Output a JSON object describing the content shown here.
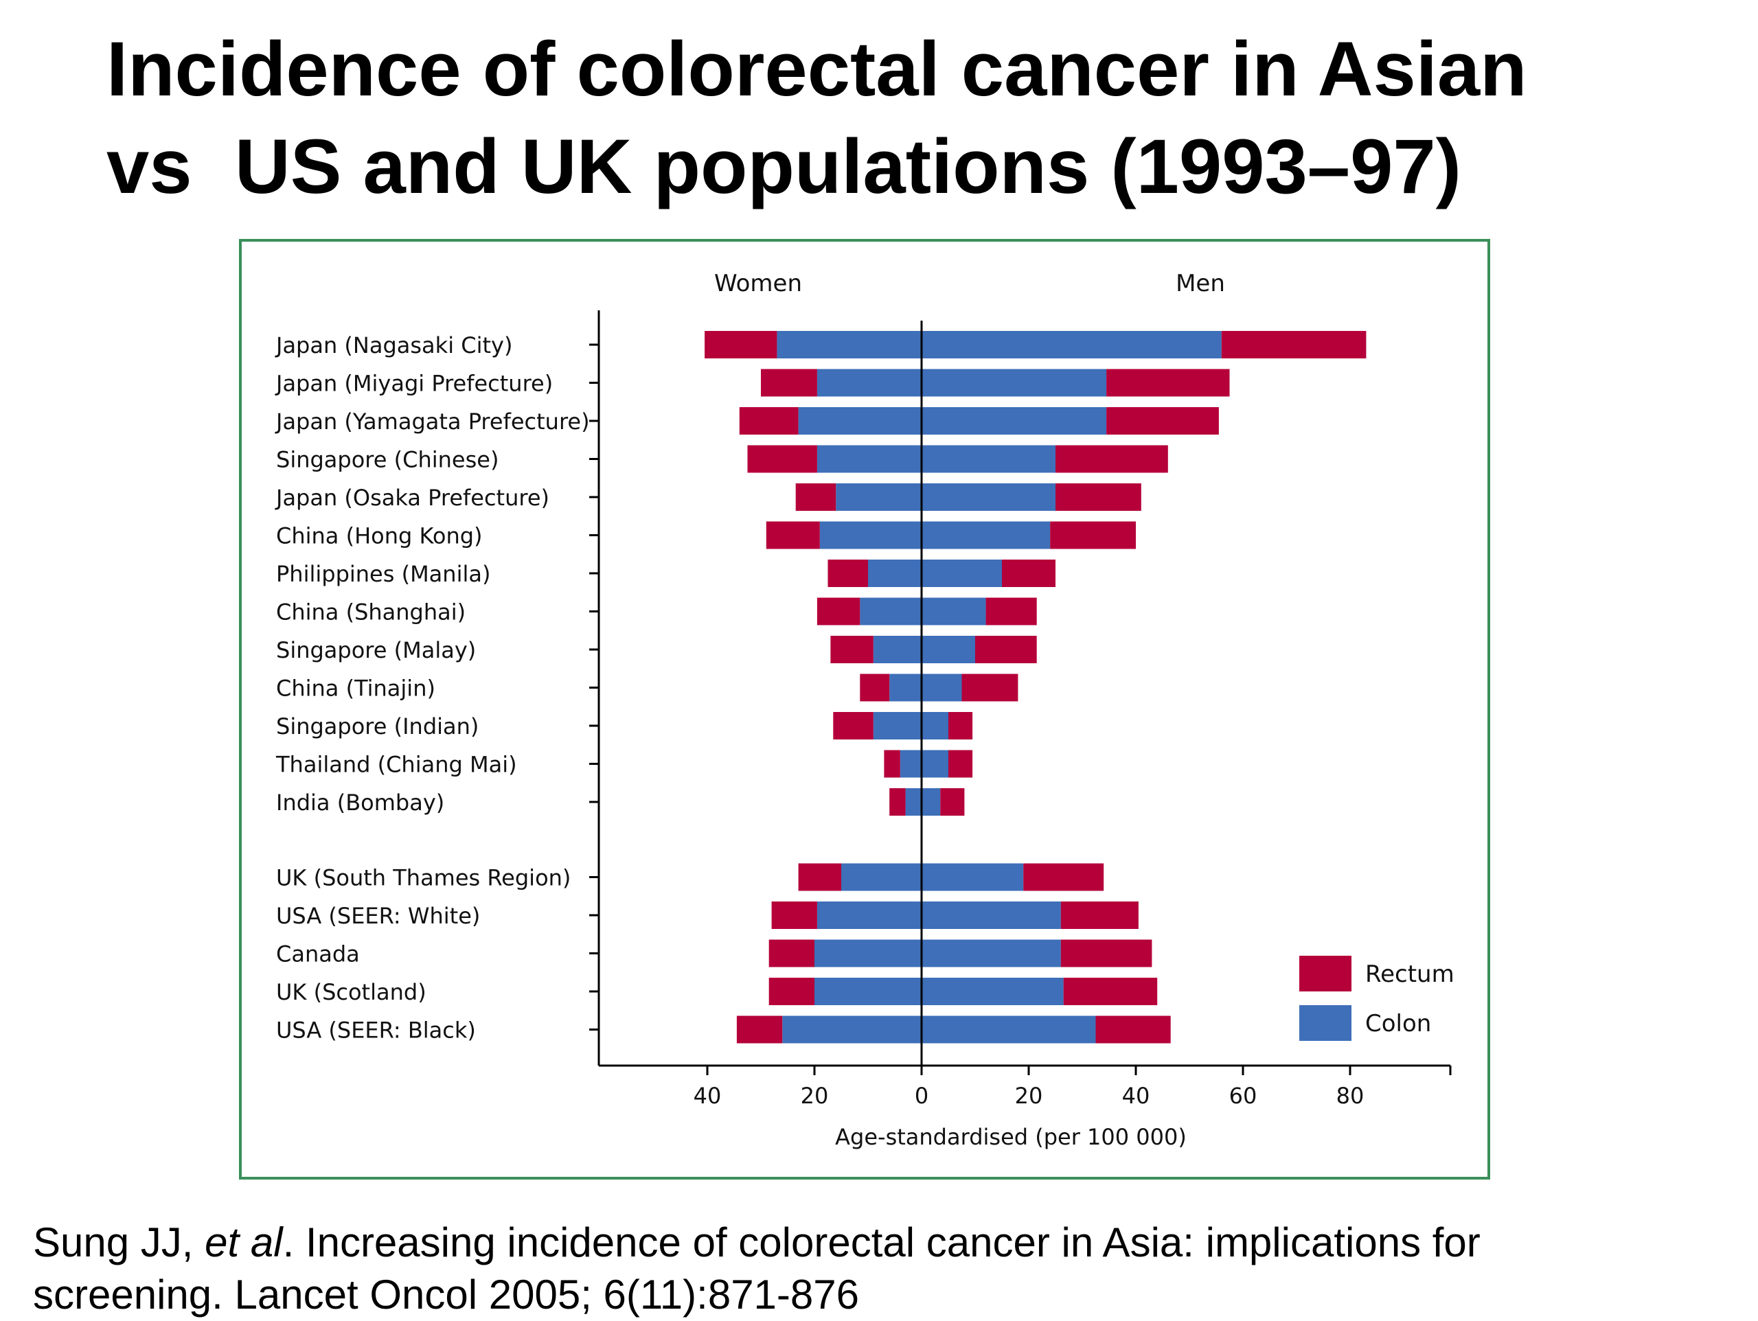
{
  "slide": {
    "title_line1": "Incidence of colorectal cancer in Asian",
    "title_line2": "vs  US and UK populations (1993–97)",
    "citation": {
      "author": "Sung JJ, ",
      "etal": "et al",
      "rest_line1": ". Increasing incidence of colorectal cancer in Asia: implications for",
      "line2": "screening. Lancet Oncol 2005; 6(11):871-876"
    }
  },
  "chart_data": {
    "type": "bar",
    "orientation": "horizontal",
    "stacked": true,
    "panels": [
      "Women",
      "Men"
    ],
    "xlabel": "Age-standardised (per 100 000)",
    "xlim": [
      -60,
      100
    ],
    "xticks": [
      -40,
      -20,
      0,
      20,
      40,
      60,
      80
    ],
    "xtick_labels": [
      "40",
      "20",
      "0",
      "20",
      "40",
      "60",
      "80"
    ],
    "legend_position": "bottom-right",
    "colors": {
      "Rectum": "#b5003a",
      "Colon": "#3e6fb8"
    },
    "categories": [
      "Japan (Nagasaki City)",
      "Japan (Miyagi Prefecture)",
      "Japan (Yamagata Prefecture)",
      "Singapore (Chinese)",
      "Japan (Osaka Prefecture)",
      "China (Hong Kong)",
      "Philippines (Manila)",
      "China (Shanghai)",
      "Singapore (Malay)",
      "China (Tinajin)",
      "Singapore (Indian)",
      "Thailand (Chiang Mai)",
      "India (Bombay)",
      "UK (South Thames Region)",
      "USA (SEER: White)",
      "Canada",
      "UK (Scotland)",
      "USA (SEER: Black)"
    ],
    "group_break_after": 12,
    "series": [
      {
        "name": "Colon",
        "women": [
          27,
          19.5,
          23,
          19.5,
          16,
          19,
          10,
          11.5,
          9,
          6,
          9,
          4,
          3,
          15,
          19.5,
          20,
          20,
          26
        ],
        "men": [
          56,
          34.5,
          34.5,
          25,
          25,
          24,
          15,
          12,
          10,
          7.5,
          5,
          5,
          3.5,
          19,
          26,
          26,
          26.5,
          32.5
        ]
      },
      {
        "name": "Rectum",
        "women": [
          13.5,
          10.5,
          11,
          13,
          7.5,
          10,
          7.5,
          8,
          8,
          5.5,
          7.5,
          3,
          3,
          8,
          8.5,
          8.5,
          8.5,
          8.5
        ],
        "men": [
          27,
          23,
          21,
          21,
          16,
          16,
          10,
          9.5,
          11.5,
          10.5,
          4.5,
          4.5,
          4.5,
          15,
          14.5,
          17,
          17.5,
          14
        ]
      }
    ]
  }
}
